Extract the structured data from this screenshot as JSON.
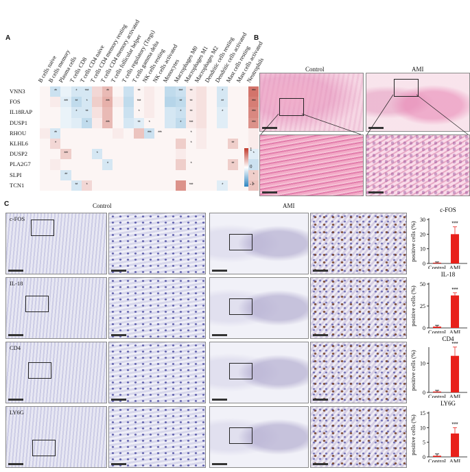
{
  "panels": {
    "a": "A",
    "b": "B",
    "c": "C"
  },
  "heatmap": {
    "columns": [
      "B cells naive",
      "B cells memory",
      "Plasma cells",
      "T cells CD8",
      "T cells CD4 naive",
      "T cells CD4 memory resting",
      "T cells CD4 memory activated",
      "T cells follicular helper",
      "T cells regulatory (Tregs)",
      "T cells gamma delta",
      "NK cells resting",
      "NK cells activated",
      "Monocytes",
      "Macrophages M0",
      "Macrophages M1",
      "Macrophages M2",
      "Dendritic cells resting",
      "Dendritic cells activated",
      "Mast cells resting",
      "Mast cells activated",
      "Neutrophils"
    ],
    "rows": [
      "VNN3",
      "FOS",
      "IL18RAP",
      "DUSP1",
      "RHOU",
      "KLHL6",
      "DUSP2",
      "PLA2G7",
      "SLPI",
      "TCN1"
    ],
    "values": [
      [
        0.05,
        -0.25,
        -0.1,
        -0.2,
        -0.2,
        0.2,
        0.35,
        0.05,
        -0.25,
        0.05,
        0.1,
        0.05,
        -0.3,
        -0.25,
        0.1,
        0.15,
        0.05,
        -0.2,
        0.05,
        0.05,
        0.7
      ],
      [
        0.05,
        0.1,
        -0.15,
        -0.3,
        -0.2,
        0.25,
        0.4,
        0.1,
        -0.3,
        0.05,
        0.1,
        0.05,
        -0.35,
        -0.3,
        0.1,
        0.15,
        0.05,
        -0.2,
        0.05,
        0.05,
        0.65
      ],
      [
        0.05,
        0.05,
        -0.1,
        -0.2,
        -0.2,
        0.15,
        0.35,
        0.05,
        -0.25,
        0.05,
        0.1,
        0.05,
        -0.2,
        -0.25,
        0.1,
        0.15,
        0.05,
        -0.15,
        0.05,
        0.05,
        0.6
      ],
      [
        0.05,
        0.05,
        -0.1,
        -0.15,
        -0.3,
        0.1,
        0.35,
        0.05,
        -0.2,
        -0.15,
        0.05,
        0.05,
        -0.2,
        -0.3,
        0.1,
        0.15,
        0.05,
        -0.15,
        0.05,
        0.05,
        0.55
      ],
      [
        0.1,
        -0.2,
        0.05,
        0.05,
        0.05,
        0.05,
        0.05,
        0.1,
        0.05,
        0.3,
        -0.25,
        0.05,
        0.05,
        0.05,
        0.05,
        0.1,
        0.05,
        0.05,
        0.05,
        0.05,
        0.1
      ],
      [
        0.05,
        0.2,
        0.05,
        0.05,
        0.05,
        0.05,
        0.05,
        0.05,
        0.05,
        0.05,
        0.05,
        0.05,
        0.05,
        0.25,
        0.05,
        0.1,
        0.05,
        0.05,
        0.25,
        0.05,
        0.1
      ],
      [
        0.05,
        0.05,
        0.25,
        0.05,
        0.05,
        -0.2,
        0.05,
        0.05,
        0.05,
        0.05,
        0.05,
        0.05,
        0.05,
        0.1,
        0.05,
        0.05,
        0.05,
        0.05,
        0.05,
        0.05,
        -0.15
      ],
      [
        0.05,
        0.1,
        0.05,
        0.05,
        0.05,
        0.05,
        -0.2,
        0.05,
        0.05,
        0.05,
        0.05,
        0.05,
        0.05,
        0.25,
        0.05,
        0.05,
        0.05,
        0.05,
        0.25,
        0.05,
        -0.25
      ],
      [
        0.05,
        0.05,
        -0.2,
        0.05,
        0.05,
        0.05,
        0.05,
        0.05,
        0.05,
        0.05,
        0.05,
        0.05,
        0.05,
        0.05,
        0.05,
        0.05,
        0.05,
        0.05,
        0.05,
        0.05,
        0.25
      ],
      [
        0.05,
        0.05,
        0.05,
        -0.2,
        0.2,
        0.05,
        0.05,
        0.05,
        0.05,
        0.05,
        0.05,
        0.05,
        0.05,
        0.55,
        0.05,
        0.05,
        0.05,
        -0.15,
        0.05,
        0.05,
        0.3
      ]
    ],
    "stars": [
      [
        "",
        "**",
        "",
        "*",
        "***",
        "",
        "**",
        "",
        "",
        "**",
        "",
        "",
        "",
        "***",
        "**",
        "",
        "",
        "*",
        "",
        "",
        "***"
      ],
      [
        "",
        "",
        "***",
        "**",
        "*",
        "",
        "***",
        "",
        "",
        "***",
        "",
        "",
        "",
        "**",
        "**",
        "",
        "",
        "**",
        "",
        "",
        "***"
      ],
      [
        "",
        "",
        "",
        "*",
        "**",
        "",
        "",
        "",
        "",
        "*",
        "",
        "",
        "",
        "*",
        "**",
        "",
        "",
        "*",
        "",
        "",
        "***"
      ],
      [
        "",
        "",
        "",
        "",
        "*",
        "",
        "***",
        "",
        "",
        "**",
        "*",
        "",
        "",
        "*",
        "***",
        "",
        "",
        "",
        "",
        "",
        "***"
      ],
      [
        "",
        "**",
        "",
        "",
        "",
        "",
        "",
        "",
        "",
        "",
        "***",
        "***",
        "",
        "",
        "*",
        "",
        "",
        "",
        "",
        "",
        ""
      ],
      [
        "",
        "*",
        "",
        "",
        "",
        "",
        "",
        "",
        "",
        "",
        "",
        "",
        "",
        "",
        "*",
        "",
        "",
        "",
        "**",
        "",
        ""
      ],
      [
        "",
        "",
        "***",
        "",
        "",
        "*",
        "",
        "",
        "",
        "",
        "",
        "",
        "",
        "",
        "",
        "",
        "",
        "",
        "",
        "",
        "*"
      ],
      [
        "",
        "",
        "",
        "",
        "",
        "",
        "*",
        "",
        "",
        "",
        "",
        "",
        "",
        "",
        "*",
        "",
        "",
        "",
        "**",
        "",
        ""
      ],
      [
        "",
        "",
        "**",
        "",
        "",
        "",
        "",
        "",
        "",
        "",
        "",
        "",
        "",
        "",
        "",
        "",
        "",
        "",
        "",
        "",
        "*"
      ],
      [
        "",
        "",
        "",
        "**",
        "*",
        "",
        "",
        "",
        "",
        "",
        "",
        "",
        "",
        "",
        "***",
        "",
        "",
        "*",
        "",
        "",
        "*"
      ]
    ],
    "legend": {
      "max": "1",
      "mid": "0",
      "min": "-1",
      "pos_color": "#c0392b",
      "neg_color": "#2e86c1"
    }
  },
  "he": {
    "control_label": "Control",
    "ami_label": "AMI"
  },
  "ihc": {
    "control_label": "Control",
    "ami_label": "AMI",
    "rows": [
      {
        "marker": "c-FOS",
        "title": "c-FOS",
        "ylabel": "positive cells (%)",
        "sig": "***"
      },
      {
        "marker": "IL-18",
        "title": "IL-18",
        "ylabel": "positive cells (%)",
        "sig": "***"
      },
      {
        "marker": "CD4",
        "title": "CD4",
        "ylabel": "positive cells (%)",
        "sig": "***"
      },
      {
        "marker": "LY6G",
        "title": "LY6G",
        "ylabel": "positive cells (%)",
        "sig": "***"
      }
    ]
  },
  "chart_data": [
    {
      "type": "bar",
      "title": "c-FOS",
      "ylabel": "positive cells (%)",
      "categories": [
        "Control",
        "AMI"
      ],
      "values": [
        0.5,
        20
      ],
      "errors": [
        0.5,
        5
      ],
      "ylim": [
        0,
        30
      ],
      "yticks": [
        0,
        10,
        20,
        30
      ],
      "bar_color": "#e8201a"
    },
    {
      "type": "bar",
      "title": "IL-18",
      "ylabel": "positive cells (%)",
      "categories": [
        "Control",
        "AMI"
      ],
      "values": [
        1.5,
        37
      ],
      "errors": [
        1.5,
        3
      ],
      "ylim": [
        0,
        50
      ],
      "yticks": [
        0,
        25,
        50
      ],
      "bar_color": "#e8201a"
    },
    {
      "type": "bar",
      "title": "CD4",
      "ylabel": "positive cells (%)",
      "categories": [
        "Control",
        "AMI"
      ],
      "values": [
        0.3,
        12.5
      ],
      "errors": [
        0.4,
        3
      ],
      "ylim": [
        0,
        15
      ],
      "yticks": [
        0,
        10
      ],
      "bar_color": "#e8201a"
    },
    {
      "type": "bar",
      "title": "LY6G",
      "ylabel": "positive cells (%)",
      "categories": [
        "Control",
        "AMI"
      ],
      "values": [
        0.4,
        8
      ],
      "errors": [
        0.6,
        2
      ],
      "ylim": [
        0,
        15
      ],
      "yticks": [
        0,
        5,
        10,
        15
      ],
      "bar_color": "#e8201a"
    }
  ]
}
